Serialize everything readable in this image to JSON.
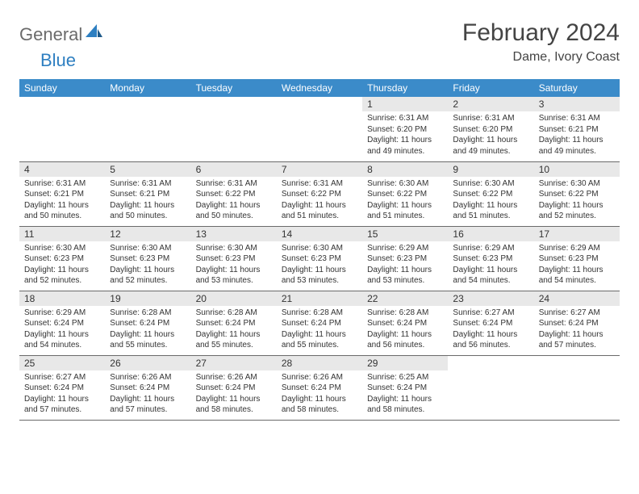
{
  "logo": {
    "text1": "General",
    "text2": "Blue"
  },
  "title": "February 2024",
  "location": "Dame, Ivory Coast",
  "colors": {
    "header_bg": "#3b8bc9",
    "header_text": "#ffffff",
    "daynum_bg": "#e8e8e8",
    "text": "#333333",
    "border": "#6a6a6a",
    "logo_gray": "#6b6b6b",
    "logo_blue": "#2e7fc1"
  },
  "day_names": [
    "Sunday",
    "Monday",
    "Tuesday",
    "Wednesday",
    "Thursday",
    "Friday",
    "Saturday"
  ],
  "weeks": [
    [
      null,
      null,
      null,
      null,
      {
        "n": "1",
        "sr": "Sunrise: 6:31 AM",
        "ss": "Sunset: 6:20 PM",
        "d1": "Daylight: 11 hours",
        "d2": "and 49 minutes."
      },
      {
        "n": "2",
        "sr": "Sunrise: 6:31 AM",
        "ss": "Sunset: 6:20 PM",
        "d1": "Daylight: 11 hours",
        "d2": "and 49 minutes."
      },
      {
        "n": "3",
        "sr": "Sunrise: 6:31 AM",
        "ss": "Sunset: 6:21 PM",
        "d1": "Daylight: 11 hours",
        "d2": "and 49 minutes."
      }
    ],
    [
      {
        "n": "4",
        "sr": "Sunrise: 6:31 AM",
        "ss": "Sunset: 6:21 PM",
        "d1": "Daylight: 11 hours",
        "d2": "and 50 minutes."
      },
      {
        "n": "5",
        "sr": "Sunrise: 6:31 AM",
        "ss": "Sunset: 6:21 PM",
        "d1": "Daylight: 11 hours",
        "d2": "and 50 minutes."
      },
      {
        "n": "6",
        "sr": "Sunrise: 6:31 AM",
        "ss": "Sunset: 6:22 PM",
        "d1": "Daylight: 11 hours",
        "d2": "and 50 minutes."
      },
      {
        "n": "7",
        "sr": "Sunrise: 6:31 AM",
        "ss": "Sunset: 6:22 PM",
        "d1": "Daylight: 11 hours",
        "d2": "and 51 minutes."
      },
      {
        "n": "8",
        "sr": "Sunrise: 6:30 AM",
        "ss": "Sunset: 6:22 PM",
        "d1": "Daylight: 11 hours",
        "d2": "and 51 minutes."
      },
      {
        "n": "9",
        "sr": "Sunrise: 6:30 AM",
        "ss": "Sunset: 6:22 PM",
        "d1": "Daylight: 11 hours",
        "d2": "and 51 minutes."
      },
      {
        "n": "10",
        "sr": "Sunrise: 6:30 AM",
        "ss": "Sunset: 6:22 PM",
        "d1": "Daylight: 11 hours",
        "d2": "and 52 minutes."
      }
    ],
    [
      {
        "n": "11",
        "sr": "Sunrise: 6:30 AM",
        "ss": "Sunset: 6:23 PM",
        "d1": "Daylight: 11 hours",
        "d2": "and 52 minutes."
      },
      {
        "n": "12",
        "sr": "Sunrise: 6:30 AM",
        "ss": "Sunset: 6:23 PM",
        "d1": "Daylight: 11 hours",
        "d2": "and 52 minutes."
      },
      {
        "n": "13",
        "sr": "Sunrise: 6:30 AM",
        "ss": "Sunset: 6:23 PM",
        "d1": "Daylight: 11 hours",
        "d2": "and 53 minutes."
      },
      {
        "n": "14",
        "sr": "Sunrise: 6:30 AM",
        "ss": "Sunset: 6:23 PM",
        "d1": "Daylight: 11 hours",
        "d2": "and 53 minutes."
      },
      {
        "n": "15",
        "sr": "Sunrise: 6:29 AM",
        "ss": "Sunset: 6:23 PM",
        "d1": "Daylight: 11 hours",
        "d2": "and 53 minutes."
      },
      {
        "n": "16",
        "sr": "Sunrise: 6:29 AM",
        "ss": "Sunset: 6:23 PM",
        "d1": "Daylight: 11 hours",
        "d2": "and 54 minutes."
      },
      {
        "n": "17",
        "sr": "Sunrise: 6:29 AM",
        "ss": "Sunset: 6:23 PM",
        "d1": "Daylight: 11 hours",
        "d2": "and 54 minutes."
      }
    ],
    [
      {
        "n": "18",
        "sr": "Sunrise: 6:29 AM",
        "ss": "Sunset: 6:24 PM",
        "d1": "Daylight: 11 hours",
        "d2": "and 54 minutes."
      },
      {
        "n": "19",
        "sr": "Sunrise: 6:28 AM",
        "ss": "Sunset: 6:24 PM",
        "d1": "Daylight: 11 hours",
        "d2": "and 55 minutes."
      },
      {
        "n": "20",
        "sr": "Sunrise: 6:28 AM",
        "ss": "Sunset: 6:24 PM",
        "d1": "Daylight: 11 hours",
        "d2": "and 55 minutes."
      },
      {
        "n": "21",
        "sr": "Sunrise: 6:28 AM",
        "ss": "Sunset: 6:24 PM",
        "d1": "Daylight: 11 hours",
        "d2": "and 55 minutes."
      },
      {
        "n": "22",
        "sr": "Sunrise: 6:28 AM",
        "ss": "Sunset: 6:24 PM",
        "d1": "Daylight: 11 hours",
        "d2": "and 56 minutes."
      },
      {
        "n": "23",
        "sr": "Sunrise: 6:27 AM",
        "ss": "Sunset: 6:24 PM",
        "d1": "Daylight: 11 hours",
        "d2": "and 56 minutes."
      },
      {
        "n": "24",
        "sr": "Sunrise: 6:27 AM",
        "ss": "Sunset: 6:24 PM",
        "d1": "Daylight: 11 hours",
        "d2": "and 57 minutes."
      }
    ],
    [
      {
        "n": "25",
        "sr": "Sunrise: 6:27 AM",
        "ss": "Sunset: 6:24 PM",
        "d1": "Daylight: 11 hours",
        "d2": "and 57 minutes."
      },
      {
        "n": "26",
        "sr": "Sunrise: 6:26 AM",
        "ss": "Sunset: 6:24 PM",
        "d1": "Daylight: 11 hours",
        "d2": "and 57 minutes."
      },
      {
        "n": "27",
        "sr": "Sunrise: 6:26 AM",
        "ss": "Sunset: 6:24 PM",
        "d1": "Daylight: 11 hours",
        "d2": "and 58 minutes."
      },
      {
        "n": "28",
        "sr": "Sunrise: 6:26 AM",
        "ss": "Sunset: 6:24 PM",
        "d1": "Daylight: 11 hours",
        "d2": "and 58 minutes."
      },
      {
        "n": "29",
        "sr": "Sunrise: 6:25 AM",
        "ss": "Sunset: 6:24 PM",
        "d1": "Daylight: 11 hours",
        "d2": "and 58 minutes."
      },
      null,
      null
    ]
  ]
}
